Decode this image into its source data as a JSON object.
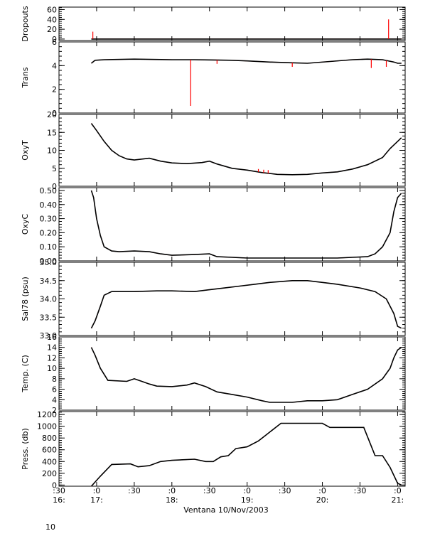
{
  "xaxis": {
    "tick_labels": [
      ":30",
      ":0",
      ":30",
      ":0",
      ":30",
      ":0",
      ":30",
      ":0",
      ":30",
      ":0"
    ],
    "hour_labels": [
      "16:",
      "17:",
      "18:",
      "19:",
      "20:",
      "21:"
    ],
    "day_label": "10",
    "title": "Ventana 10/Nov/2003",
    "range_hours": [
      16.5,
      21.1
    ]
  },
  "colors": {
    "trace": "#000000",
    "raw": "#ff0000",
    "axis": "#000000",
    "background": "#ffffff"
  },
  "chart_data": [
    {
      "type": "line",
      "ylabel": "Dropouts",
      "ylim": [
        -3,
        65
      ],
      "ticks": [
        0,
        20,
        40,
        60
      ],
      "tick_labels": [
        "0",
        "20",
        "40",
        "60"
      ],
      "series": [
        {
          "role": "smoothed",
          "x": [
            16.93,
            17.5,
            18.5,
            19.5,
            20.5,
            20.9,
            21.05
          ],
          "y": [
            0,
            0,
            0,
            0,
            0,
            0,
            0
          ]
        },
        {
          "role": "raw",
          "spikes": [
            [
              16.95,
              15
            ],
            [
              20.88,
              40
            ]
          ]
        }
      ]
    },
    {
      "type": "line",
      "ylabel": "Trans",
      "ylim": [
        0,
        6
      ],
      "ticks": [
        0,
        2,
        4,
        6
      ],
      "tick_labels": [
        "0",
        "2",
        "4",
        "6"
      ],
      "series": [
        {
          "role": "smoothed",
          "x": [
            16.93,
            16.98,
            17.1,
            17.5,
            18.0,
            18.3,
            18.5,
            18.8,
            19.0,
            19.3,
            19.55,
            19.8,
            20.1,
            20.4,
            20.6,
            20.8,
            20.95,
            21.0,
            21.05
          ],
          "y": [
            4.2,
            4.45,
            4.5,
            4.55,
            4.5,
            4.5,
            4.48,
            4.45,
            4.4,
            4.3,
            4.25,
            4.2,
            4.35,
            4.5,
            4.55,
            4.5,
            4.3,
            4.2,
            4.2
          ]
        },
        {
          "role": "raw",
          "spikes": [
            [
              18.25,
              0.6
            ],
            [
              19.6,
              3.9
            ],
            [
              20.65,
              3.8
            ],
            [
              20.85,
              3.9
            ],
            [
              18.6,
              4.15
            ]
          ]
        }
      ]
    },
    {
      "type": "line",
      "ylabel": "OxyT",
      "ylim": [
        0,
        20
      ],
      "ticks": [
        0,
        5,
        10,
        15,
        20
      ],
      "tick_labels": [
        "0",
        "5",
        "10",
        "15",
        "20"
      ],
      "series": [
        {
          "role": "smoothed",
          "x": [
            16.93,
            17.0,
            17.1,
            17.2,
            17.3,
            17.4,
            17.5,
            17.7,
            17.85,
            18.0,
            18.2,
            18.4,
            18.5,
            18.6,
            18.8,
            19.0,
            19.2,
            19.4,
            19.6,
            19.8,
            20.0,
            20.2,
            20.4,
            20.6,
            20.8,
            20.9,
            21.0,
            21.05
          ],
          "y": [
            17.5,
            15.5,
            12.5,
            10.0,
            8.5,
            7.6,
            7.3,
            7.8,
            7.0,
            6.5,
            6.3,
            6.6,
            7.0,
            6.2,
            5.0,
            4.5,
            3.8,
            3.3,
            3.2,
            3.3,
            3.7,
            4.0,
            4.8,
            6.0,
            8.0,
            10.5,
            12.5,
            13.5
          ]
        },
        {
          "role": "raw",
          "spikes": [
            [
              19.15,
              4.8
            ],
            [
              19.22,
              4.6
            ],
            [
              19.28,
              4.5
            ]
          ]
        }
      ]
    },
    {
      "type": "line",
      "ylabel": "OxyC",
      "ylim": [
        0,
        0.52
      ],
      "ticks": [
        0.0,
        0.1,
        0.2,
        0.3,
        0.4,
        0.5
      ],
      "tick_labels": [
        "0.00",
        "0.10",
        "0.20",
        "0.30",
        "0.40",
        "0.50"
      ],
      "series": [
        {
          "role": "smoothed",
          "x": [
            16.93,
            16.96,
            17.0,
            17.05,
            17.1,
            17.2,
            17.3,
            17.5,
            17.7,
            17.85,
            18.0,
            18.3,
            18.5,
            18.6,
            18.8,
            19.0,
            19.3,
            19.5,
            19.8,
            20.0,
            20.2,
            20.4,
            20.6,
            20.7,
            20.8,
            20.9,
            20.95,
            21.0,
            21.05
          ],
          "y": [
            0.5,
            0.45,
            0.3,
            0.18,
            0.1,
            0.07,
            0.065,
            0.07,
            0.065,
            0.05,
            0.04,
            0.045,
            0.05,
            0.03,
            0.025,
            0.02,
            0.02,
            0.02,
            0.02,
            0.02,
            0.02,
            0.025,
            0.03,
            0.05,
            0.1,
            0.2,
            0.35,
            0.45,
            0.48
          ]
        }
      ]
    },
    {
      "type": "line",
      "ylabel": "Sal78 (psu)",
      "ylim": [
        33.0,
        35.0
      ],
      "ticks": [
        33.0,
        33.5,
        34.0,
        34.5,
        35.0
      ],
      "tick_labels": [
        "33.0",
        "33.5",
        "34.0",
        "34.5",
        "35.0"
      ],
      "series": [
        {
          "role": "smoothed",
          "x": [
            16.93,
            16.98,
            17.05,
            17.1,
            17.2,
            17.5,
            17.8,
            18.0,
            18.3,
            18.5,
            18.7,
            18.9,
            19.1,
            19.3,
            19.6,
            19.8,
            20.0,
            20.2,
            20.5,
            20.7,
            20.85,
            20.95,
            21.0,
            21.05
          ],
          "y": [
            33.2,
            33.4,
            33.8,
            34.1,
            34.2,
            34.2,
            34.22,
            34.22,
            34.2,
            34.25,
            34.3,
            34.35,
            34.4,
            34.45,
            34.5,
            34.5,
            34.45,
            34.4,
            34.3,
            34.2,
            34.0,
            33.6,
            33.25,
            33.2
          ]
        }
      ]
    },
    {
      "type": "line",
      "ylabel": "Temp. (C)",
      "ylim": [
        2,
        16
      ],
      "ticks": [
        2,
        4,
        6,
        8,
        10,
        12,
        14,
        16
      ],
      "tick_labels": [
        "2",
        "4",
        "6",
        "8",
        "10",
        "12",
        "14",
        "16"
      ],
      "series": [
        {
          "role": "smoothed",
          "x": [
            16.93,
            16.98,
            17.05,
            17.15,
            17.4,
            17.5,
            17.6,
            17.7,
            17.8,
            18.0,
            18.2,
            18.3,
            18.45,
            18.6,
            18.8,
            19.0,
            19.2,
            19.3,
            19.6,
            19.8,
            20.0,
            20.2,
            20.4,
            20.6,
            20.8,
            20.9,
            20.95,
            21.0,
            21.05
          ],
          "y": [
            14.0,
            12.5,
            10.0,
            7.7,
            7.5,
            8.0,
            7.5,
            7.0,
            6.6,
            6.5,
            6.8,
            7.2,
            6.5,
            5.5,
            5.0,
            4.5,
            3.8,
            3.5,
            3.5,
            3.8,
            3.8,
            4.0,
            5.0,
            6.0,
            8.0,
            10.0,
            12.0,
            13.5,
            14.0
          ]
        }
      ]
    },
    {
      "type": "line",
      "ylabel": "Press. (db)",
      "ylim": [
        -20,
        1250
      ],
      "ticks": [
        0,
        200,
        400,
        600,
        800,
        1000,
        1200
      ],
      "tick_labels": [
        "0",
        "200",
        "400",
        "600",
        "800",
        "1000",
        "1200"
      ],
      "series": [
        {
          "role": "smoothed",
          "x": [
            16.93,
            17.05,
            17.2,
            17.45,
            17.55,
            17.7,
            17.85,
            18.0,
            18.3,
            18.45,
            18.55,
            18.65,
            18.75,
            18.85,
            19.0,
            19.15,
            19.25,
            19.45,
            19.6,
            19.65,
            19.85,
            20.0,
            20.1,
            20.3,
            20.5,
            20.55,
            20.7,
            20.8,
            20.9,
            21.0,
            21.05
          ],
          "y": [
            -20,
            150,
            350,
            360,
            310,
            330,
            400,
            420,
            440,
            400,
            400,
            480,
            500,
            620,
            650,
            750,
            850,
            1050,
            1050,
            1050,
            1050,
            1050,
            980,
            980,
            980,
            980,
            500,
            500,
            300,
            30,
            0
          ]
        }
      ]
    }
  ]
}
